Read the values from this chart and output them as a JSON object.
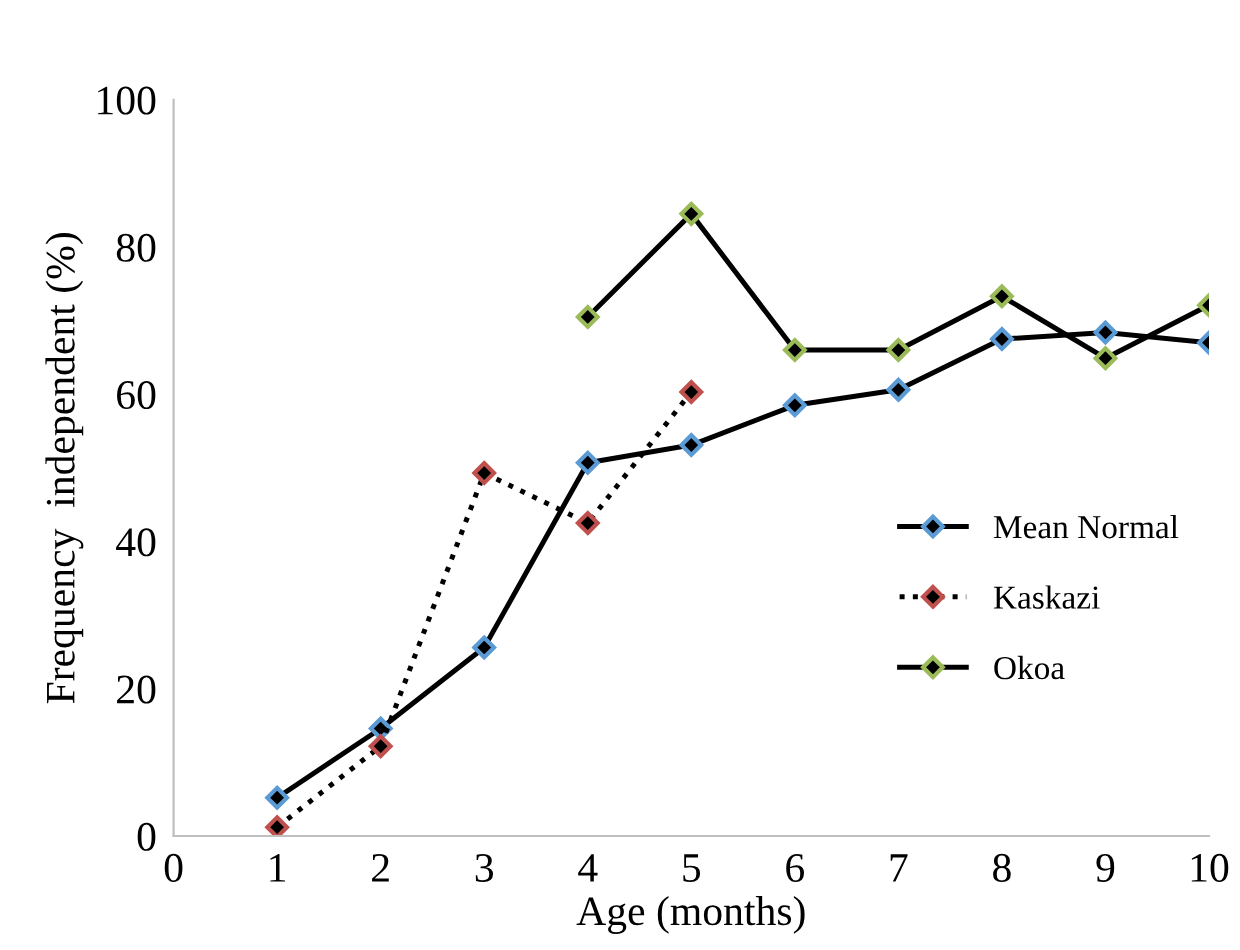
{
  "chart_data": {
    "type": "line",
    "xlabel": "Age (months)",
    "ylabel": "Frequency  independent (%)",
    "x": [
      1,
      2,
      3,
      4,
      5,
      6,
      7,
      8,
      9,
      10
    ],
    "series": [
      {
        "name": "Mean Normal",
        "color": "#5b9bd5",
        "line_style": "solid",
        "values": [
          5.2,
          14.6,
          25.6,
          50.7,
          53.1,
          58.5,
          60.6,
          67.5,
          68.4,
          67.0
        ]
      },
      {
        "name": "Kaskazi",
        "color": "#c0504d",
        "line_style": "dotted",
        "values": [
          1.2,
          12.2,
          49.3,
          42.5,
          60.3,
          null,
          null,
          null,
          null,
          null
        ]
      },
      {
        "name": "Okoa",
        "color": "#9bbb59",
        "line_style": "solid",
        "values": [
          null,
          null,
          null,
          70.5,
          84.5,
          66.0,
          66.0,
          73.3,
          64.9,
          72.1
        ]
      }
    ],
    "xlim": [
      0,
      10
    ],
    "xticks": [
      0,
      1,
      2,
      3,
      4,
      5,
      6,
      7,
      8,
      9,
      10
    ],
    "ylim": [
      0,
      100
    ],
    "yticks": [
      0,
      20,
      40,
      60,
      80,
      100
    ],
    "marker": "diamond",
    "grid": false,
    "legend": "right"
  }
}
